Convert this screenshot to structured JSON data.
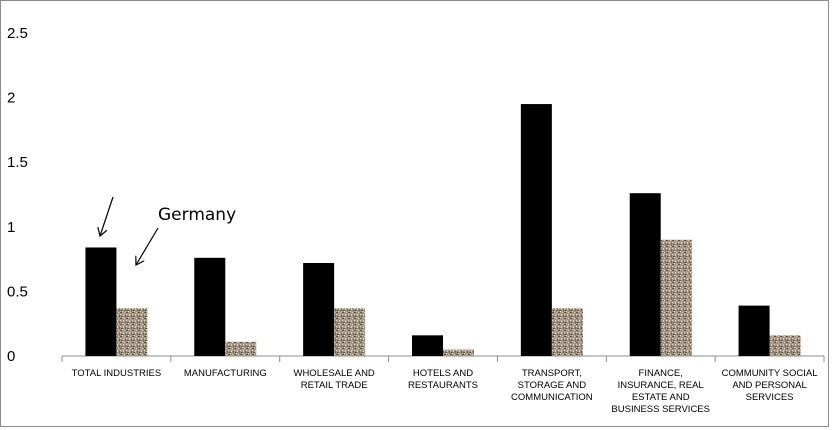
{
  "chart_data": {
    "type": "bar",
    "categories": [
      [
        "TOTAL INDUSTRIES"
      ],
      [
        "MANUFACTURING"
      ],
      [
        "WHOLESALE AND",
        "RETAIL TRADE"
      ],
      [
        "HOTELS AND",
        "RESTAURANTS"
      ],
      [
        "TRANSPORT,",
        "STORAGE AND",
        "COMMUNICATION"
      ],
      [
        "FINANCE,",
        "INSURANCE, REAL",
        "ESTATE AND",
        "BUSINESS SERVICES"
      ],
      [
        "COMMUNITY SOCIAL",
        "AND PERSONAL",
        "SERVICES"
      ]
    ],
    "series": [
      {
        "color": "#000000",
        "values": [
          0.84,
          0.76,
          0.72,
          0.16,
          1.95,
          1.26,
          0.39
        ]
      },
      {
        "name": "Germany",
        "color": "#a39584",
        "values": [
          0.37,
          0.11,
          0.37,
          0.05,
          0.37,
          0.9,
          0.16
        ]
      }
    ],
    "ylim": [
      0,
      2.5
    ],
    "yticks": [
      "0",
      "0.5",
      "1",
      "1.5",
      "2",
      "2.5"
    ],
    "grid": false,
    "annotation": {
      "text": "Germany"
    }
  }
}
